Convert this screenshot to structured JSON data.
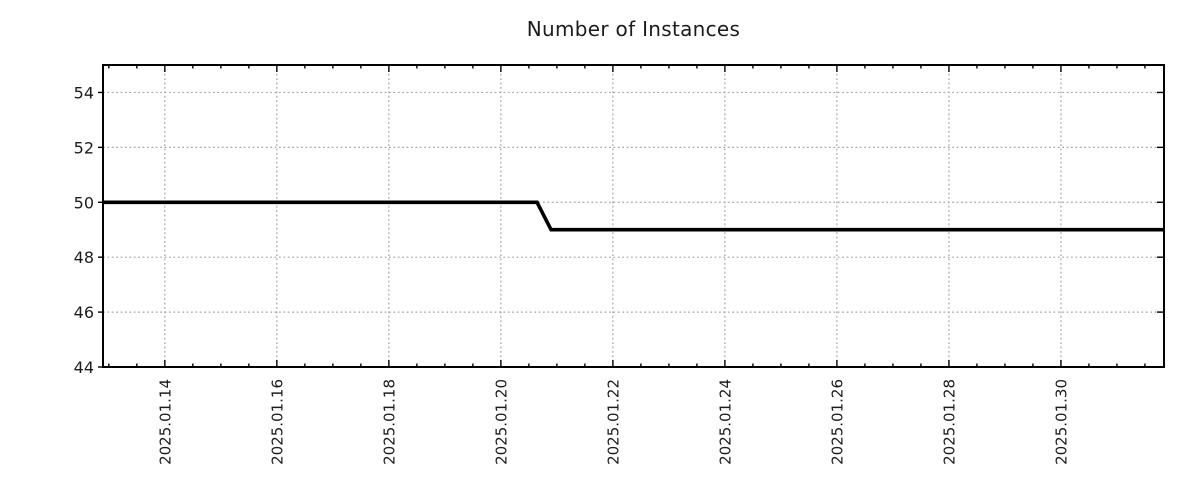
{
  "chart_data": {
    "type": "line",
    "title": "Number of Instances",
    "xlabel": "",
    "ylabel": "",
    "legend": "none",
    "grid": {
      "style": "dotted",
      "color": "#a6a6a6"
    },
    "frame_color": "#000000",
    "text_color": "#1c1c1c",
    "background_color": "#ffffff",
    "ylim": [
      44,
      55
    ],
    "y_ticks": [
      44,
      46,
      48,
      50,
      52,
      54
    ],
    "xlim": [
      "2025.01.12 21:30",
      "2025.01.31 20:10"
    ],
    "x_ticks": [
      "2025.01.14",
      "2025.01.16",
      "2025.01.18",
      "2025.01.20",
      "2025.01.22",
      "2025.01.24",
      "2025.01.26",
      "2025.01.28",
      "2025.01.30"
    ],
    "x_minor_tick_hours": 12,
    "series": [
      {
        "name": "Number of Instances",
        "color": "#000000",
        "line_width": 3.6,
        "points": [
          {
            "x": "2025.01.12 21:30",
            "y": 50
          },
          {
            "x": "2025.01.20 15:30",
            "y": 50
          },
          {
            "x": "2025.01.20 21:30",
            "y": 49
          },
          {
            "x": "2025.01.31 20:10",
            "y": 49
          }
        ]
      }
    ]
  }
}
